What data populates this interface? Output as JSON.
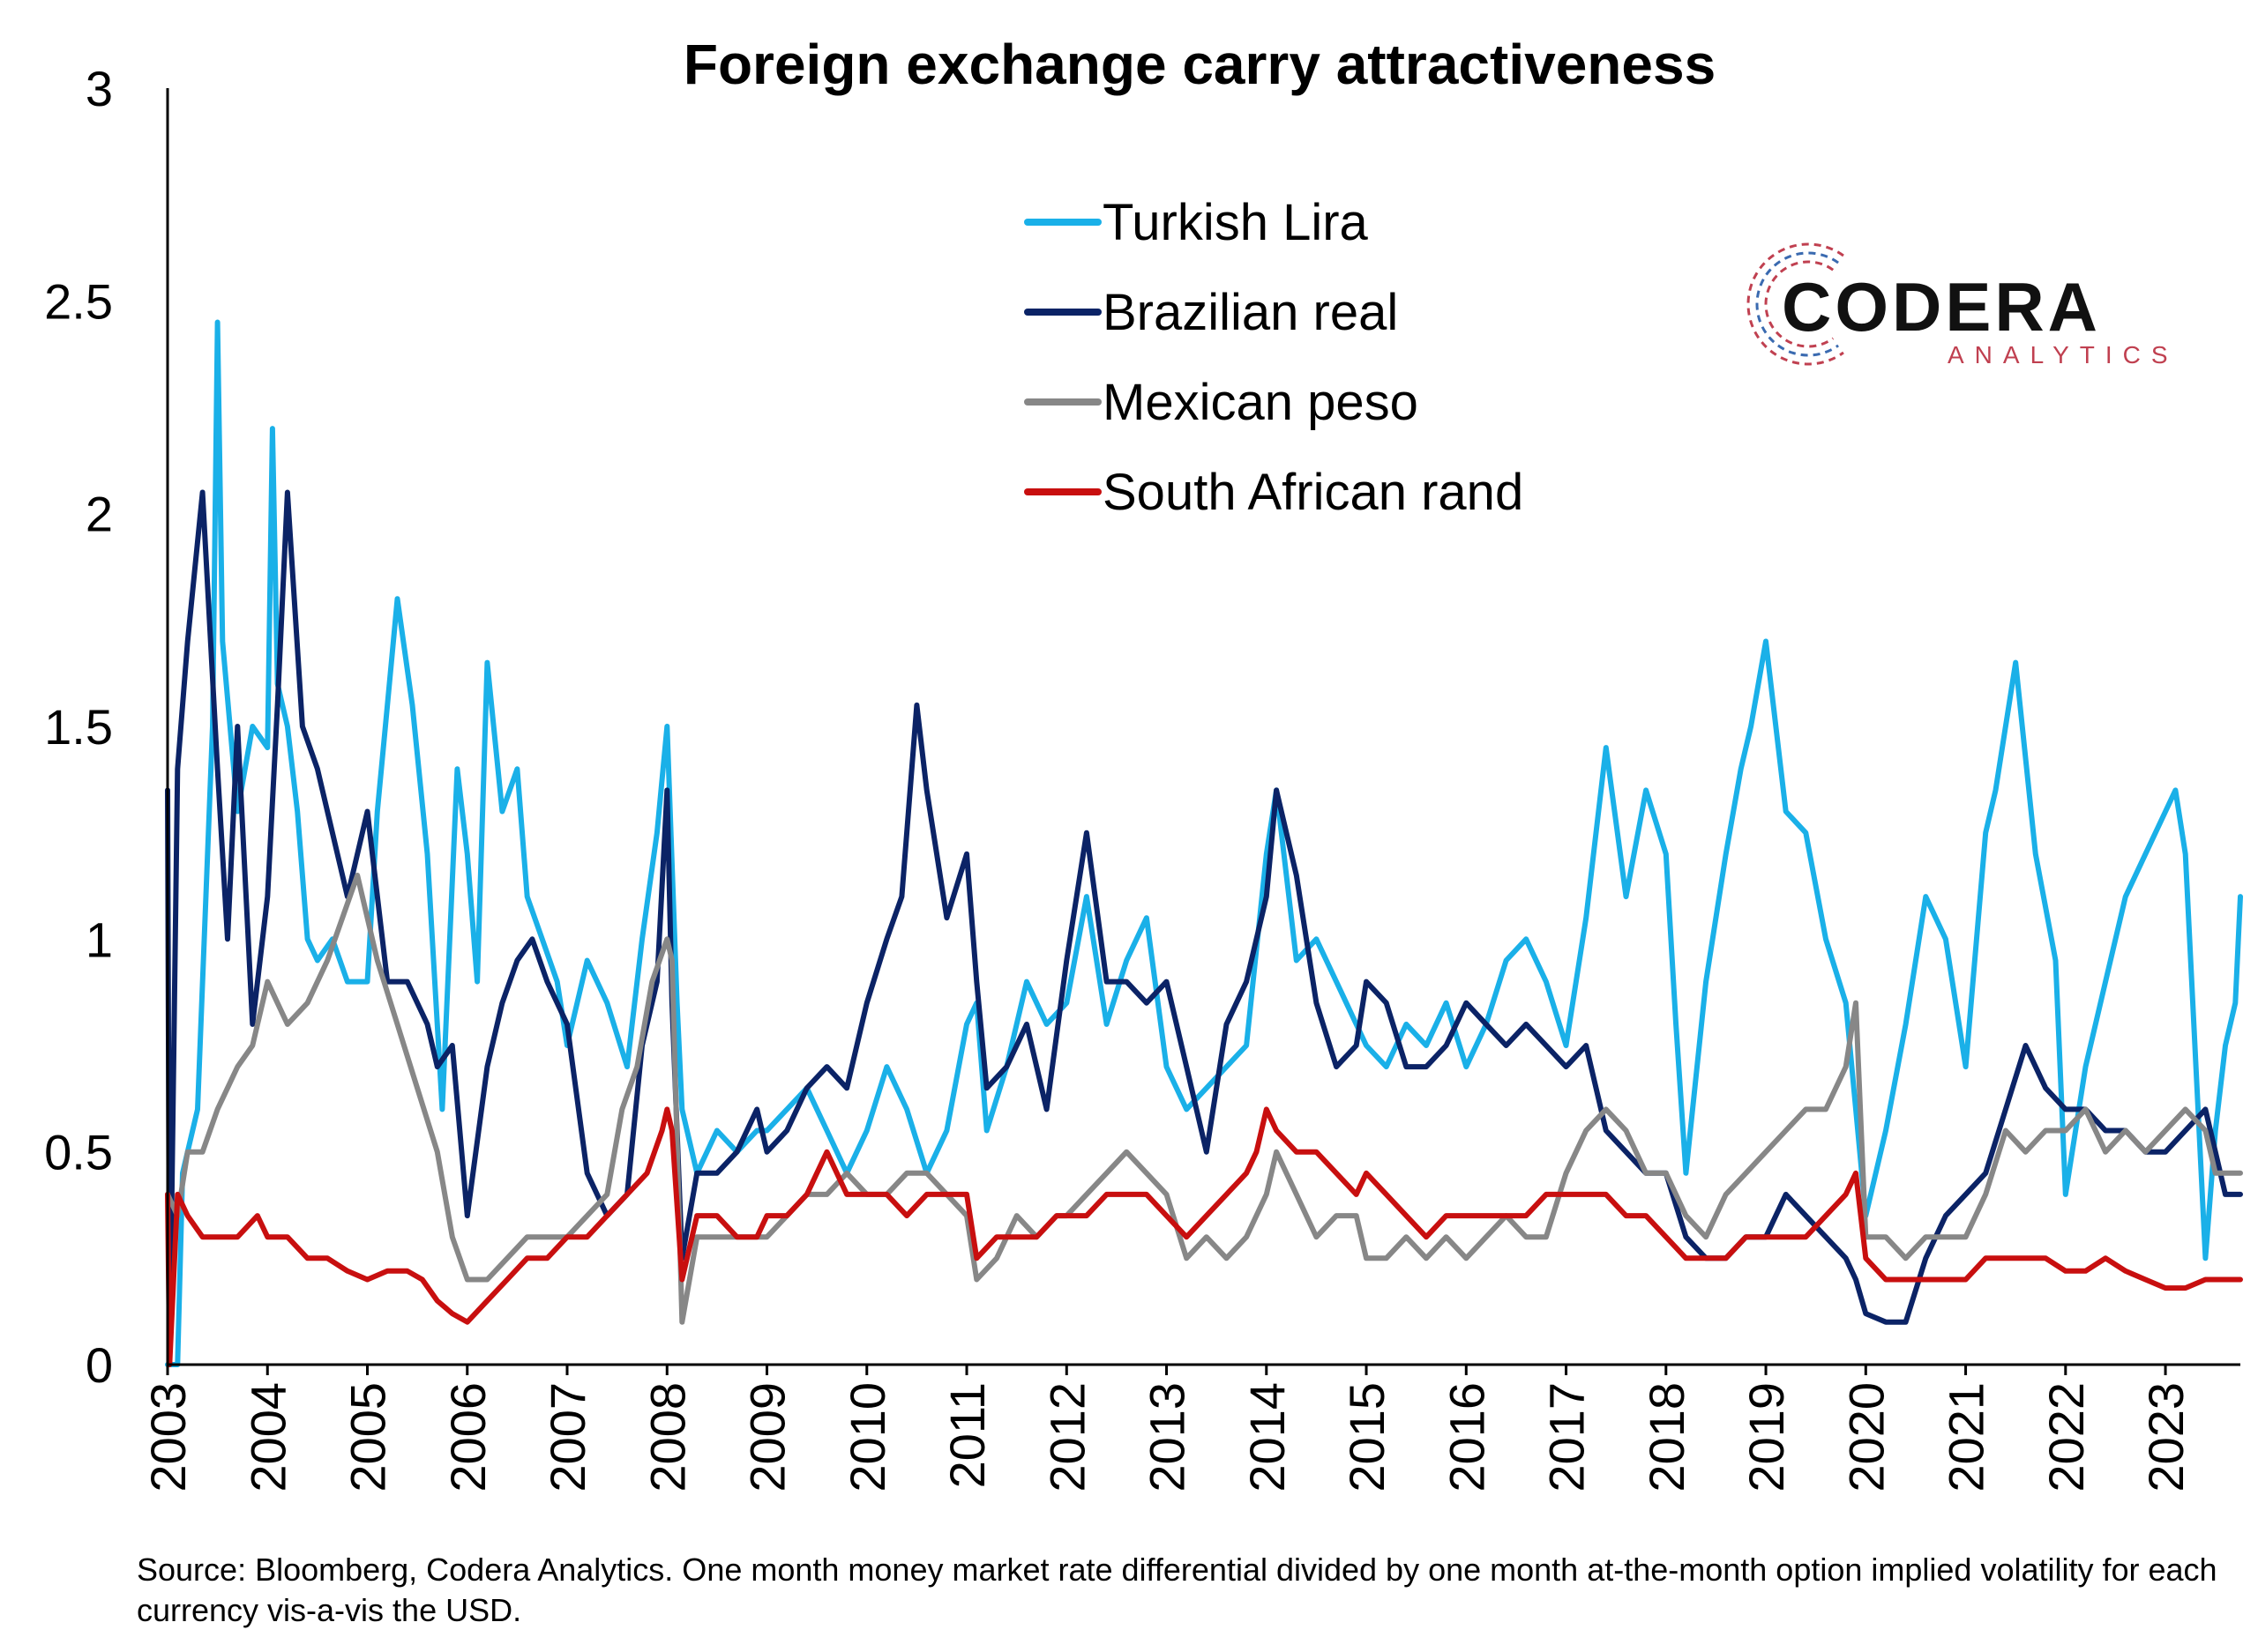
{
  "chart_data": {
    "type": "line",
    "title": "Foreign exchange carry attractiveness",
    "xlabel": "",
    "ylabel": "",
    "ylim": [
      0,
      3
    ],
    "xlim": [
      2003,
      2023.75
    ],
    "yticks": [
      "0",
      "0.5",
      "1",
      "1.5",
      "2",
      "2.5",
      "3"
    ],
    "xticks": [
      "2003",
      "2004",
      "2005",
      "2006",
      "2007",
      "2008",
      "2009",
      "2010",
      "2011",
      "2012",
      "2013",
      "2014",
      "2015",
      "2016",
      "2017",
      "2018",
      "2019",
      "2020",
      "2021",
      "2022",
      "2023"
    ],
    "grid": false,
    "legend_position": "top-center",
    "series": [
      {
        "name": "Turkish Lira",
        "color": "#1ab0e8",
        "x": [
          2003.0,
          2003.1,
          2003.15,
          2003.3,
          2003.45,
          2003.5,
          2003.55,
          2003.7,
          2003.85,
          2004.0,
          2004.05,
          2004.1,
          2004.2,
          2004.3,
          2004.4,
          2004.5,
          2004.65,
          2004.8,
          2005.0,
          2005.1,
          2005.2,
          2005.3,
          2005.45,
          2005.6,
          2005.75,
          2005.9,
          2006.0,
          2006.1,
          2006.2,
          2006.35,
          2006.5,
          2006.6,
          2006.75,
          2006.9,
          2007.0,
          2007.2,
          2007.4,
          2007.6,
          2007.75,
          2007.9,
          2008.0,
          2008.1,
          2008.15,
          2008.3,
          2008.5,
          2008.7,
          2008.9,
          2009.0,
          2009.2,
          2009.4,
          2009.6,
          2009.8,
          2010.0,
          2010.2,
          2010.4,
          2010.6,
          2010.8,
          2011.0,
          2011.1,
          2011.2,
          2011.4,
          2011.6,
          2011.8,
          2012.0,
          2012.2,
          2012.4,
          2012.6,
          2012.8,
          2013.0,
          2013.2,
          2013.4,
          2013.6,
          2013.8,
          2014.0,
          2014.1,
          2014.3,
          2014.5,
          2014.7,
          2014.9,
          2015.0,
          2015.2,
          2015.4,
          2015.6,
          2015.8,
          2016.0,
          2016.2,
          2016.4,
          2016.6,
          2016.8,
          2017.0,
          2017.2,
          2017.4,
          2017.6,
          2017.8,
          2018.0,
          2018.1,
          2018.2,
          2018.4,
          2018.6,
          2018.75,
          2018.85,
          2019.0,
          2019.2,
          2019.4,
          2019.6,
          2019.8,
          2019.9,
          2020.0,
          2020.2,
          2020.4,
          2020.6,
          2020.8,
          2021.0,
          2021.2,
          2021.3,
          2021.5,
          2021.7,
          2021.9,
          2022.0,
          2022.2,
          2022.4,
          2022.6,
          2022.8,
          2023.0,
          2023.1,
          2023.2,
          2023.4,
          2023.5,
          2023.6,
          2023.7,
          2023.75
        ],
        "y": [
          0.0,
          0.0,
          0.45,
          0.6,
          1.5,
          2.45,
          1.7,
          1.3,
          1.5,
          1.45,
          2.2,
          1.6,
          1.5,
          1.3,
          1.0,
          0.95,
          1.0,
          0.9,
          0.9,
          1.3,
          1.55,
          1.8,
          1.55,
          1.2,
          0.6,
          1.4,
          1.2,
          0.9,
          1.65,
          1.3,
          1.4,
          1.1,
          1.0,
          0.9,
          0.75,
          0.95,
          0.85,
          0.7,
          1.0,
          1.25,
          1.5,
          0.85,
          0.6,
          0.45,
          0.55,
          0.5,
          0.55,
          0.55,
          0.6,
          0.65,
          0.55,
          0.45,
          0.55,
          0.7,
          0.6,
          0.45,
          0.55,
          0.8,
          0.85,
          0.55,
          0.7,
          0.9,
          0.8,
          0.85,
          1.1,
          0.8,
          0.95,
          1.05,
          0.7,
          0.6,
          0.65,
          0.7,
          0.75,
          1.2,
          1.35,
          0.95,
          1.0,
          0.9,
          0.8,
          0.75,
          0.7,
          0.8,
          0.75,
          0.85,
          0.7,
          0.8,
          0.95,
          1.0,
          0.9,
          0.75,
          1.05,
          1.45,
          1.1,
          1.35,
          1.2,
          0.8,
          0.45,
          0.9,
          1.2,
          1.4,
          1.5,
          1.7,
          1.3,
          1.25,
          1.0,
          0.85,
          0.6,
          0.35,
          0.55,
          0.8,
          1.1,
          1.0,
          0.7,
          1.25,
          1.35,
          1.65,
          1.2,
          0.95,
          0.4,
          0.7,
          0.9,
          1.1,
          1.2,
          1.3,
          1.35,
          1.2,
          0.25,
          0.55,
          0.75,
          0.85,
          1.1
        ]
      },
      {
        "name": "Brazilian real",
        "color": "#0b2366",
        "x": [
          2003.0,
          2003.02,
          2003.1,
          2003.2,
          2003.35,
          2003.5,
          2003.6,
          2003.7,
          2003.85,
          2004.0,
          2004.1,
          2004.2,
          2004.35,
          2004.5,
          2004.65,
          2004.8,
          2005.0,
          2005.2,
          2005.4,
          2005.6,
          2005.7,
          2005.85,
          2006.0,
          2006.2,
          2006.35,
          2006.5,
          2006.65,
          2006.8,
          2007.0,
          2007.2,
          2007.4,
          2007.6,
          2007.75,
          2007.9,
          2008.0,
          2008.05,
          2008.15,
          2008.3,
          2008.5,
          2008.7,
          2008.9,
          2009.0,
          2009.2,
          2009.4,
          2009.6,
          2009.8,
          2010.0,
          2010.2,
          2010.35,
          2010.5,
          2010.6,
          2010.8,
          2011.0,
          2011.1,
          2011.2,
          2011.4,
          2011.6,
          2011.8,
          2012.0,
          2012.2,
          2012.4,
          2012.6,
          2012.8,
          2013.0,
          2013.2,
          2013.4,
          2013.6,
          2013.8,
          2014.0,
          2014.1,
          2014.3,
          2014.5,
          2014.7,
          2014.9,
          2015.0,
          2015.2,
          2015.4,
          2015.6,
          2015.8,
          2016.0,
          2016.2,
          2016.4,
          2016.6,
          2016.8,
          2017.0,
          2017.2,
          2017.4,
          2017.6,
          2017.8,
          2018.0,
          2018.2,
          2018.4,
          2018.6,
          2018.8,
          2019.0,
          2019.2,
          2019.4,
          2019.6,
          2019.8,
          2019.9,
          2020.0,
          2020.2,
          2020.4,
          2020.6,
          2020.8,
          2021.0,
          2021.2,
          2021.4,
          2021.6,
          2021.8,
          2022.0,
          2022.2,
          2022.4,
          2022.6,
          2022.8,
          2023.0,
          2023.2,
          2023.4,
          2023.5,
          2023.6,
          2023.75
        ],
        "y": [
          1.35,
          0.0,
          1.4,
          1.7,
          2.05,
          1.4,
          1.0,
          1.5,
          0.8,
          1.1,
          1.55,
          2.05,
          1.5,
          1.4,
          1.25,
          1.1,
          1.3,
          0.9,
          0.9,
          0.8,
          0.7,
          0.75,
          0.35,
          0.7,
          0.85,
          0.95,
          1.0,
          0.9,
          0.8,
          0.45,
          0.35,
          0.4,
          0.75,
          0.9,
          1.35,
          0.85,
          0.25,
          0.45,
          0.45,
          0.5,
          0.6,
          0.5,
          0.55,
          0.65,
          0.7,
          0.65,
          0.85,
          1.0,
          1.1,
          1.55,
          1.35,
          1.05,
          1.2,
          0.9,
          0.65,
          0.7,
          0.8,
          0.6,
          0.95,
          1.25,
          0.9,
          0.9,
          0.85,
          0.9,
          0.7,
          0.5,
          0.8,
          0.9,
          1.1,
          1.35,
          1.15,
          0.85,
          0.7,
          0.75,
          0.9,
          0.85,
          0.7,
          0.7,
          0.75,
          0.85,
          0.8,
          0.75,
          0.8,
          0.75,
          0.7,
          0.75,
          0.55,
          0.5,
          0.45,
          0.45,
          0.3,
          0.25,
          0.25,
          0.3,
          0.3,
          0.4,
          0.35,
          0.3,
          0.25,
          0.2,
          0.12,
          0.1,
          0.1,
          0.25,
          0.35,
          0.4,
          0.45,
          0.6,
          0.75,
          0.65,
          0.6,
          0.6,
          0.55,
          0.55,
          0.5,
          0.5,
          0.55,
          0.6,
          0.5,
          0.4,
          0.4
        ]
      },
      {
        "name": "Mexican peso",
        "color": "#878787",
        "x": [
          2003.0,
          2003.1,
          2003.2,
          2003.35,
          2003.5,
          2003.7,
          2003.85,
          2004.0,
          2004.2,
          2004.4,
          2004.6,
          2004.75,
          2004.9,
          2005.1,
          2005.3,
          2005.5,
          2005.7,
          2005.85,
          2006.0,
          2006.2,
          2006.4,
          2006.6,
          2006.8,
          2007.0,
          2007.2,
          2007.4,
          2007.55,
          2007.7,
          2007.85,
          2008.0,
          2008.05,
          2008.15,
          2008.3,
          2008.5,
          2008.7,
          2008.9,
          2009.0,
          2009.2,
          2009.4,
          2009.6,
          2009.8,
          2010.0,
          2010.2,
          2010.4,
          2010.6,
          2010.8,
          2011.0,
          2011.1,
          2011.3,
          2011.5,
          2011.7,
          2011.9,
          2012.0,
          2012.2,
          2012.4,
          2012.6,
          2012.8,
          2013.0,
          2013.2,
          2013.4,
          2013.6,
          2013.8,
          2014.0,
          2014.1,
          2014.3,
          2014.5,
          2014.7,
          2014.9,
          2015.0,
          2015.2,
          2015.4,
          2015.6,
          2015.8,
          2016.0,
          2016.2,
          2016.4,
          2016.6,
          2016.8,
          2017.0,
          2017.2,
          2017.4,
          2017.6,
          2017.8,
          2018.0,
          2018.2,
          2018.4,
          2018.6,
          2018.8,
          2019.0,
          2019.2,
          2019.4,
          2019.6,
          2019.8,
          2019.9,
          2020.0,
          2020.2,
          2020.4,
          2020.6,
          2020.8,
          2021.0,
          2021.2,
          2021.4,
          2021.6,
          2021.8,
          2022.0,
          2022.2,
          2022.4,
          2022.6,
          2022.8,
          2023.0,
          2023.2,
          2023.4,
          2023.5,
          2023.6,
          2023.75
        ],
        "y": [
          0.4,
          0.35,
          0.5,
          0.5,
          0.6,
          0.7,
          0.75,
          0.9,
          0.8,
          0.85,
          0.95,
          1.05,
          1.15,
          0.95,
          0.8,
          0.65,
          0.5,
          0.3,
          0.2,
          0.2,
          0.25,
          0.3,
          0.3,
          0.3,
          0.35,
          0.4,
          0.6,
          0.7,
          0.9,
          1.0,
          0.95,
          0.1,
          0.3,
          0.3,
          0.3,
          0.3,
          0.3,
          0.35,
          0.4,
          0.4,
          0.45,
          0.4,
          0.4,
          0.45,
          0.45,
          0.4,
          0.35,
          0.2,
          0.25,
          0.35,
          0.3,
          0.35,
          0.35,
          0.4,
          0.45,
          0.5,
          0.45,
          0.4,
          0.25,
          0.3,
          0.25,
          0.3,
          0.4,
          0.5,
          0.4,
          0.3,
          0.35,
          0.35,
          0.25,
          0.25,
          0.3,
          0.25,
          0.3,
          0.25,
          0.3,
          0.35,
          0.3,
          0.3,
          0.45,
          0.55,
          0.6,
          0.55,
          0.45,
          0.45,
          0.35,
          0.3,
          0.4,
          0.45,
          0.5,
          0.55,
          0.6,
          0.6,
          0.7,
          0.85,
          0.3,
          0.3,
          0.25,
          0.3,
          0.3,
          0.3,
          0.4,
          0.55,
          0.5,
          0.55,
          0.55,
          0.6,
          0.5,
          0.55,
          0.5,
          0.55,
          0.6,
          0.55,
          0.45,
          0.45,
          0.45
        ]
      },
      {
        "name": "South African rand",
        "color": "#c80f0f",
        "x": [
          2003.0,
          2003.02,
          2003.1,
          2003.2,
          2003.35,
          2003.5,
          2003.7,
          2003.9,
          2004.0,
          2004.2,
          2004.4,
          2004.6,
          2004.8,
          2005.0,
          2005.2,
          2005.4,
          2005.55,
          2005.7,
          2005.85,
          2006.0,
          2006.2,
          2006.4,
          2006.6,
          2006.8,
          2007.0,
          2007.2,
          2007.4,
          2007.6,
          2007.8,
          2007.95,
          2008.0,
          2008.05,
          2008.15,
          2008.3,
          2008.5,
          2008.7,
          2008.9,
          2009.0,
          2009.2,
          2009.4,
          2009.6,
          2009.8,
          2010.0,
          2010.2,
          2010.4,
          2010.6,
          2010.8,
          2011.0,
          2011.1,
          2011.3,
          2011.5,
          2011.7,
          2011.9,
          2012.0,
          2012.2,
          2012.4,
          2012.6,
          2012.8,
          2013.0,
          2013.2,
          2013.4,
          2013.6,
          2013.8,
          2013.9,
          2014.0,
          2014.1,
          2014.3,
          2014.5,
          2014.7,
          2014.9,
          2015.0,
          2015.2,
          2015.4,
          2015.6,
          2015.8,
          2016.0,
          2016.2,
          2016.4,
          2016.6,
          2016.8,
          2017.0,
          2017.2,
          2017.4,
          2017.6,
          2017.8,
          2018.0,
          2018.2,
          2018.4,
          2018.6,
          2018.8,
          2019.0,
          2019.2,
          2019.4,
          2019.6,
          2019.8,
          2019.9,
          2020.0,
          2020.2,
          2020.4,
          2020.6,
          2020.8,
          2021.0,
          2021.2,
          2021.4,
          2021.6,
          2021.8,
          2022.0,
          2022.2,
          2022.4,
          2022.6,
          2022.8,
          2023.0,
          2023.2,
          2023.4,
          2023.5,
          2023.6,
          2023.75
        ],
        "y": [
          0.4,
          0.0,
          0.4,
          0.35,
          0.3,
          0.3,
          0.3,
          0.35,
          0.3,
          0.3,
          0.25,
          0.25,
          0.22,
          0.2,
          0.22,
          0.22,
          0.2,
          0.15,
          0.12,
          0.1,
          0.15,
          0.2,
          0.25,
          0.25,
          0.3,
          0.3,
          0.35,
          0.4,
          0.45,
          0.55,
          0.6,
          0.55,
          0.2,
          0.35,
          0.35,
          0.3,
          0.3,
          0.35,
          0.35,
          0.4,
          0.5,
          0.4,
          0.4,
          0.4,
          0.35,
          0.4,
          0.4,
          0.4,
          0.25,
          0.3,
          0.3,
          0.3,
          0.35,
          0.35,
          0.35,
          0.4,
          0.4,
          0.4,
          0.35,
          0.3,
          0.35,
          0.4,
          0.45,
          0.5,
          0.6,
          0.55,
          0.5,
          0.5,
          0.45,
          0.4,
          0.45,
          0.4,
          0.35,
          0.3,
          0.35,
          0.35,
          0.35,
          0.35,
          0.35,
          0.4,
          0.4,
          0.4,
          0.4,
          0.35,
          0.35,
          0.3,
          0.25,
          0.25,
          0.25,
          0.3,
          0.3,
          0.3,
          0.3,
          0.35,
          0.4,
          0.45,
          0.25,
          0.2,
          0.2,
          0.2,
          0.2,
          0.2,
          0.25,
          0.25,
          0.25,
          0.25,
          0.22,
          0.22,
          0.25,
          0.22,
          0.2,
          0.18,
          0.18,
          0.2,
          0.2,
          0.2,
          0.2
        ]
      }
    ]
  },
  "logo": {
    "name": "CODERA",
    "subtitle": "ANALYTICS",
    "accent_color": "#c04050",
    "secondary_color": "#3a6ab0"
  },
  "source_note": "Source: Bloomberg, Codera Analytics. One month money market rate differential divided by one month at-the-month option implied volatility for each currency vis-a-vis the USD."
}
